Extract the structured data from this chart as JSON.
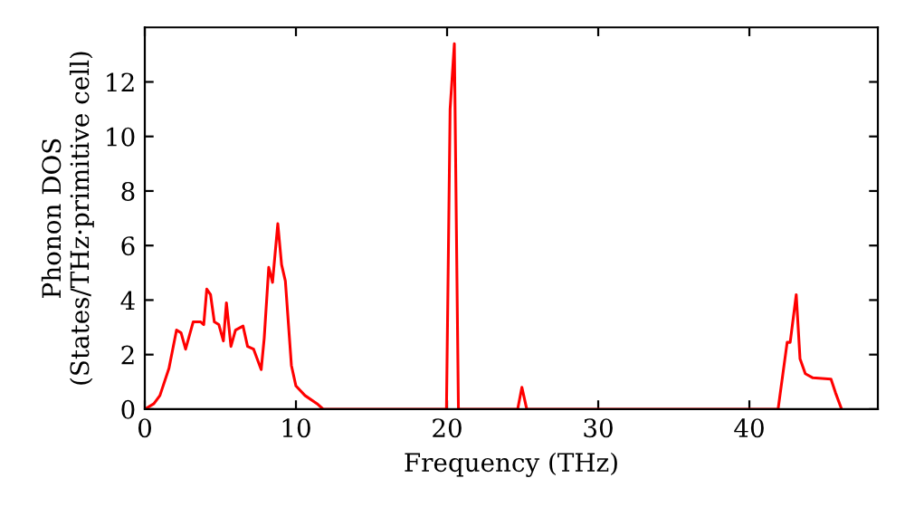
{
  "chart_data": {
    "type": "line",
    "xlabel": "Frequency (THz)",
    "ylabel": "Phonon DOS\n(States/THz·primitive cell)",
    "x": [
      0,
      0.6,
      1.0,
      1.6,
      2.1,
      2.4,
      2.7,
      3.2,
      3.7,
      3.9,
      4.1,
      4.35,
      4.6,
      4.9,
      5.2,
      5.4,
      5.7,
      6.0,
      6.5,
      6.8,
      7.2,
      7.7,
      7.9,
      8.2,
      8.45,
      8.8,
      9.05,
      9.3,
      9.7,
      10.0,
      10.6,
      11.4,
      11.8,
      19.96,
      20.2,
      20.48,
      20.75,
      24.67,
      24.95,
      25.27,
      41.9,
      42.5,
      42.7,
      43.1,
      43.35,
      43.7,
      44.2,
      45.4,
      45.7,
      46.1
    ],
    "series": [
      {
        "color": "#ff0000",
        "values": [
          0,
          0.2,
          0.5,
          1.5,
          2.9,
          2.8,
          2.2,
          3.2,
          3.2,
          3.1,
          4.4,
          4.2,
          3.2,
          3.1,
          2.5,
          3.9,
          2.3,
          2.9,
          3.05,
          2.3,
          2.2,
          1.45,
          2.6,
          5.2,
          4.65,
          6.8,
          5.3,
          4.7,
          1.6,
          0.85,
          0.5,
          0.2,
          0,
          0,
          11.0,
          13.4,
          0,
          0,
          0.8,
          0,
          0,
          2.45,
          2.45,
          4.2,
          1.85,
          1.3,
          1.15,
          1.1,
          0.6,
          0
        ]
      }
    ],
    "xlim": [
      0,
      48.5
    ],
    "ylim": [
      0,
      14
    ],
    "xticks": [
      0,
      10,
      20,
      30,
      40
    ],
    "yticks": [
      0,
      2,
      4,
      6,
      8,
      10,
      12
    ],
    "grid": false,
    "legend": false,
    "line_style": "solid",
    "marker": "none"
  }
}
